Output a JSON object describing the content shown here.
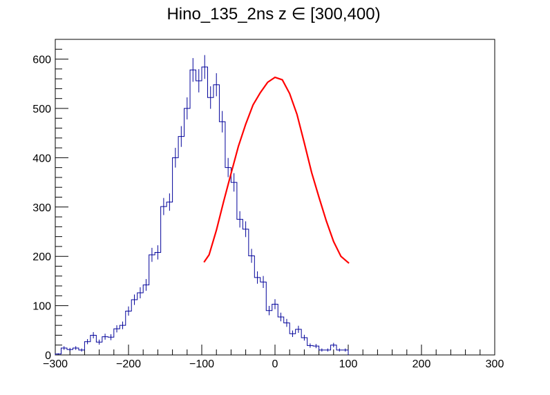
{
  "chart_data": {
    "type": "histogram",
    "title": "Hino_135_2ns z  ∈ [300,400)",
    "xlabel": "",
    "ylabel": "",
    "xlim": [
      -300,
      300
    ],
    "ylim": [
      0,
      640
    ],
    "bin_width": 8,
    "x_ticks": [
      "−300",
      "−200",
      "−100",
      "0",
      "100",
      "200",
      "300"
    ],
    "x_tick_values": [
      -300,
      -200,
      -100,
      0,
      100,
      200,
      300
    ],
    "y_ticks": [
      "0",
      "100",
      "200",
      "300",
      "400",
      "500",
      "600"
    ],
    "y_tick_values": [
      0,
      100,
      200,
      300,
      400,
      500,
      600
    ],
    "grid": false,
    "legend": "none",
    "colors": {
      "histogram": "#000099",
      "fit": "#ff0000",
      "axes": "#000000"
    },
    "series": [
      {
        "type": "histogram",
        "bin_edges_start": -300,
        "values": [
          2,
          14,
          11,
          14,
          10,
          27,
          40,
          26,
          37,
          36,
          53,
          60,
          89,
          112,
          126,
          142,
          203,
          208,
          301,
          310,
          400,
          443,
          500,
          578,
          556,
          584,
          522,
          548,
          473,
          380,
          350,
          275,
          255,
          201,
          157,
          148,
          90,
          103,
          77,
          65,
          43,
          52,
          35,
          19,
          18,
          10,
          10,
          20,
          10,
          10
        ]
      },
      {
        "type": "line",
        "fit": true,
        "x": [
          -97,
          -90,
          -80,
          -70,
          -60,
          -50,
          -40,
          -30,
          -20,
          -10,
          0,
          10,
          20,
          30,
          40,
          50,
          60,
          70,
          80,
          90,
          101
        ],
        "values": [
          188,
          203,
          253,
          312,
          368,
          423,
          468,
          507,
          532,
          553,
          563,
          558,
          530,
          488,
          430,
          370,
          320,
          272,
          230,
          200,
          186
        ]
      }
    ]
  }
}
